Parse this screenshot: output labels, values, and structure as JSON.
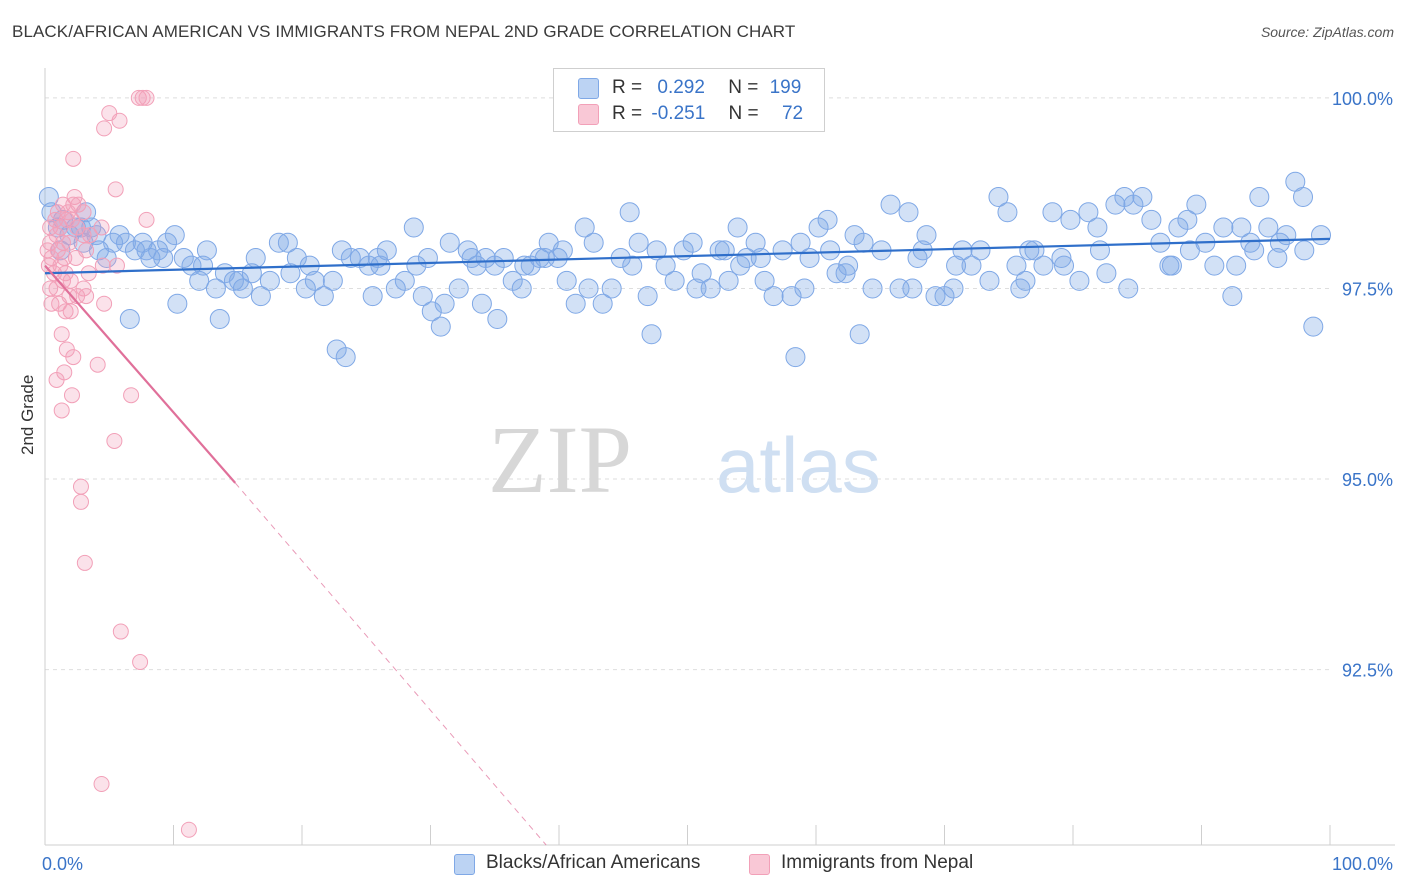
{
  "title": "BLACK/AFRICAN AMERICAN VS IMMIGRANTS FROM NEPAL 2ND GRADE CORRELATION CHART",
  "source": "Source: ZipAtlas.com",
  "watermark": {
    "zip": "ZIP",
    "atlas": "atlas"
  },
  "legend": {
    "rows": [
      {
        "r_label": "R =",
        "r_value": "0.292",
        "n_label": "N =",
        "n_value": "199",
        "color": "#7fa8e6"
      },
      {
        "r_label": "R =",
        "r_value": "-0.251",
        "n_label": "N =",
        "n_value": "72",
        "color": "#f2a0b8"
      }
    ]
  },
  "chart_data": {
    "type": "scatter",
    "title": "BLACK/AFRICAN AMERICAN VS IMMIGRANTS FROM NEPAL 2ND GRADE CORRELATION CHART",
    "xlabel": "",
    "ylabel": "2nd Grade",
    "xlim": [
      0,
      100
    ],
    "ylim": [
      90.2,
      100.3
    ],
    "x_tick_labels": [
      "0.0%",
      "100.0%"
    ],
    "y_ticks": [
      92.5,
      95.0,
      97.5,
      100.0
    ],
    "y_tick_labels": [
      "92.5%",
      "95.0%",
      "97.5%",
      "100.0%"
    ],
    "grid": true,
    "legend_position": "bottom",
    "series": [
      {
        "name": "Blacks/African Americans",
        "color": "#7fa8e6",
        "line_color": "#2f6fca",
        "r": 0.292,
        "n": 199,
        "trend": {
          "x": [
            0,
            100
          ],
          "y": [
            97.7,
            98.15
          ]
        },
        "points": [
          [
            0.3,
            98.7
          ],
          [
            0.5,
            98.5
          ],
          [
            1.0,
            98.3
          ],
          [
            1.4,
            98.4
          ],
          [
            1.9,
            98.2
          ],
          [
            2.4,
            98.3
          ],
          [
            3.0,
            98.1
          ],
          [
            3.6,
            98.3
          ],
          [
            4.2,
            98.0
          ],
          [
            4.8,
            97.9
          ],
          [
            5.3,
            98.1
          ],
          [
            5.8,
            98.2
          ],
          [
            6.3,
            98.1
          ],
          [
            7.0,
            98.0
          ],
          [
            7.6,
            98.1
          ],
          [
            8.2,
            97.9
          ],
          [
            8.8,
            98.0
          ],
          [
            9.5,
            98.1
          ],
          [
            10.1,
            98.2
          ],
          [
            10.8,
            97.9
          ],
          [
            11.4,
            97.8
          ],
          [
            12.0,
            97.6
          ],
          [
            12.6,
            98.0
          ],
          [
            13.3,
            97.5
          ],
          [
            14.0,
            97.7
          ],
          [
            14.7,
            97.6
          ],
          [
            15.4,
            97.5
          ],
          [
            16.1,
            97.7
          ],
          [
            16.8,
            97.4
          ],
          [
            17.5,
            97.6
          ],
          [
            18.2,
            98.1
          ],
          [
            18.9,
            98.1
          ],
          [
            19.6,
            97.9
          ],
          [
            20.3,
            97.5
          ],
          [
            21.0,
            97.6
          ],
          [
            21.7,
            97.4
          ],
          [
            22.4,
            97.6
          ],
          [
            23.1,
            98.0
          ],
          [
            23.8,
            97.9
          ],
          [
            24.5,
            97.9
          ],
          [
            25.2,
            97.8
          ],
          [
            25.9,
            97.9
          ],
          [
            26.6,
            98.0
          ],
          [
            27.3,
            97.5
          ],
          [
            28.0,
            97.6
          ],
          [
            28.7,
            98.3
          ],
          [
            29.4,
            97.4
          ],
          [
            30.1,
            97.2
          ],
          [
            30.8,
            97.0
          ],
          [
            31.5,
            98.1
          ],
          [
            32.2,
            97.5
          ],
          [
            32.9,
            98.0
          ],
          [
            33.6,
            97.8
          ],
          [
            34.3,
            97.9
          ],
          [
            35.0,
            97.8
          ],
          [
            35.7,
            97.9
          ],
          [
            36.4,
            97.6
          ],
          [
            37.1,
            97.5
          ],
          [
            37.8,
            97.8
          ],
          [
            38.5,
            97.9
          ],
          [
            39.2,
            98.1
          ],
          [
            39.9,
            97.9
          ],
          [
            40.6,
            97.6
          ],
          [
            41.3,
            97.3
          ],
          [
            42.0,
            98.3
          ],
          [
            42.7,
            98.1
          ],
          [
            43.4,
            97.3
          ],
          [
            44.1,
            97.5
          ],
          [
            44.8,
            97.9
          ],
          [
            45.5,
            98.5
          ],
          [
            46.2,
            98.1
          ],
          [
            46.9,
            97.4
          ],
          [
            47.6,
            98.0
          ],
          [
            48.3,
            97.8
          ],
          [
            49.0,
            97.6
          ],
          [
            49.7,
            98.0
          ],
          [
            50.4,
            98.1
          ],
          [
            51.1,
            97.7
          ],
          [
            51.8,
            97.5
          ],
          [
            52.5,
            98.0
          ],
          [
            53.2,
            97.6
          ],
          [
            53.9,
            98.3
          ],
          [
            54.6,
            97.9
          ],
          [
            55.3,
            98.1
          ],
          [
            56.0,
            97.6
          ],
          [
            56.7,
            97.4
          ],
          [
            57.4,
            98.0
          ],
          [
            58.1,
            97.4
          ],
          [
            58.8,
            98.1
          ],
          [
            59.5,
            97.9
          ],
          [
            60.2,
            98.3
          ],
          [
            60.9,
            98.4
          ],
          [
            61.6,
            97.7
          ],
          [
            62.3,
            97.7
          ],
          [
            63.0,
            98.2
          ],
          [
            63.7,
            98.1
          ],
          [
            64.4,
            97.5
          ],
          [
            65.1,
            98.0
          ],
          [
            65.8,
            98.6
          ],
          [
            66.5,
            97.5
          ],
          [
            67.2,
            98.5
          ],
          [
            67.9,
            97.9
          ],
          [
            68.6,
            98.2
          ],
          [
            69.3,
            97.4
          ],
          [
            70.0,
            97.4
          ],
          [
            70.7,
            97.5
          ],
          [
            71.4,
            98.0
          ],
          [
            72.1,
            97.8
          ],
          [
            72.8,
            98.0
          ],
          [
            73.5,
            97.6
          ],
          [
            74.2,
            98.7
          ],
          [
            74.9,
            98.5
          ],
          [
            75.6,
            97.8
          ],
          [
            76.3,
            97.6
          ],
          [
            77.0,
            98.0
          ],
          [
            77.7,
            97.8
          ],
          [
            78.4,
            98.5
          ],
          [
            79.1,
            97.9
          ],
          [
            79.8,
            98.4
          ],
          [
            80.5,
            97.6
          ],
          [
            81.2,
            98.5
          ],
          [
            81.9,
            98.3
          ],
          [
            82.6,
            97.7
          ],
          [
            83.3,
            98.6
          ],
          [
            84.0,
            98.7
          ],
          [
            84.7,
            98.6
          ],
          [
            85.4,
            98.7
          ],
          [
            86.1,
            98.4
          ],
          [
            86.8,
            98.1
          ],
          [
            87.5,
            97.8
          ],
          [
            88.2,
            98.3
          ],
          [
            88.9,
            98.4
          ],
          [
            89.6,
            98.6
          ],
          [
            90.3,
            98.1
          ],
          [
            91.0,
            97.8
          ],
          [
            91.7,
            98.3
          ],
          [
            92.4,
            97.4
          ],
          [
            93.1,
            98.3
          ],
          [
            93.8,
            98.1
          ],
          [
            94.5,
            98.7
          ],
          [
            95.2,
            98.3
          ],
          [
            95.9,
            97.9
          ],
          [
            96.6,
            98.2
          ],
          [
            97.3,
            98.9
          ],
          [
            98.0,
            98.0
          ],
          [
            98.7,
            97.0
          ],
          [
            99.3,
            98.2
          ],
          [
            1.2,
            98.0
          ],
          [
            2.8,
            98.3
          ],
          [
            6.6,
            97.1
          ],
          [
            10.3,
            97.3
          ],
          [
            13.6,
            97.1
          ],
          [
            22.7,
            96.7
          ],
          [
            23.4,
            96.6
          ],
          [
            31.1,
            97.3
          ],
          [
            35.2,
            97.1
          ],
          [
            47.2,
            96.9
          ],
          [
            58.4,
            96.6
          ],
          [
            63.4,
            96.9
          ],
          [
            9.2,
            97.9
          ],
          [
            16.4,
            97.9
          ],
          [
            25.5,
            97.4
          ],
          [
            34.0,
            97.3
          ],
          [
            42.3,
            97.5
          ],
          [
            50.7,
            97.5
          ],
          [
            59.1,
            97.5
          ],
          [
            67.5,
            97.5
          ],
          [
            75.9,
            97.5
          ],
          [
            84.3,
            97.5
          ],
          [
            92.7,
            97.8
          ],
          [
            4.0,
            98.2
          ],
          [
            12.3,
            97.8
          ],
          [
            20.6,
            97.8
          ],
          [
            28.9,
            97.8
          ],
          [
            37.3,
            97.8
          ],
          [
            45.7,
            97.8
          ],
          [
            54.1,
            97.8
          ],
          [
            62.5,
            97.8
          ],
          [
            70.9,
            97.8
          ],
          [
            79.3,
            97.8
          ],
          [
            87.7,
            97.8
          ],
          [
            96.1,
            98.1
          ],
          [
            7.9,
            98.0
          ],
          [
            15.1,
            97.6
          ],
          [
            26.1,
            97.8
          ],
          [
            33.2,
            97.9
          ],
          [
            40.3,
            98.0
          ],
          [
            52.9,
            98.0
          ],
          [
            61.1,
            98.0
          ],
          [
            68.3,
            98.0
          ],
          [
            76.6,
            98.0
          ],
          [
            82.1,
            98.0
          ],
          [
            89.1,
            98.0
          ],
          [
            94.1,
            98.0
          ],
          [
            97.9,
            98.7
          ],
          [
            3.2,
            98.5
          ],
          [
            19.1,
            97.7
          ],
          [
            29.8,
            97.9
          ],
          [
            38.9,
            97.9
          ],
          [
            55.7,
            97.9
          ]
        ]
      },
      {
        "name": "Immigrants from Nepal",
        "color": "#f2a0b8",
        "line_color": "#e0709a",
        "r": -0.251,
        "n": 72,
        "trend": {
          "x": [
            0,
            14.8
          ],
          "y": [
            97.8,
            94.95
          ]
        },
        "trend_extension": {
          "x": [
            14.8,
            39.0
          ],
          "y": [
            94.95,
            90.2
          ]
        },
        "points": [
          [
            7.3,
            100.0
          ],
          [
            7.6,
            100.0
          ],
          [
            7.9,
            100.0
          ],
          [
            5.0,
            99.8
          ],
          [
            5.8,
            99.7
          ],
          [
            4.6,
            99.6
          ],
          [
            2.2,
            99.2
          ],
          [
            5.5,
            98.8
          ],
          [
            2.3,
            98.7
          ],
          [
            7.9,
            98.4
          ],
          [
            1.0,
            98.5
          ],
          [
            1.4,
            98.6
          ],
          [
            1.8,
            98.5
          ],
          [
            2.2,
            98.6
          ],
          [
            2.6,
            98.6
          ],
          [
            3.0,
            98.5
          ],
          [
            0.4,
            98.3
          ],
          [
            0.8,
            98.4
          ],
          [
            1.2,
            98.3
          ],
          [
            1.7,
            98.4
          ],
          [
            2.1,
            98.4
          ],
          [
            2.5,
            98.3
          ],
          [
            3.0,
            98.2
          ],
          [
            0.4,
            98.1
          ],
          [
            0.9,
            98.2
          ],
          [
            1.4,
            98.1
          ],
          [
            1.9,
            98.1
          ],
          [
            3.5,
            98.2
          ],
          [
            4.4,
            98.3
          ],
          [
            0.2,
            98.0
          ],
          [
            0.5,
            97.9
          ],
          [
            1.0,
            98.0
          ],
          [
            1.5,
            97.9
          ],
          [
            2.4,
            97.9
          ],
          [
            3.2,
            98.0
          ],
          [
            0.3,
            97.8
          ],
          [
            0.7,
            97.7
          ],
          [
            1.2,
            97.8
          ],
          [
            1.6,
            97.7
          ],
          [
            2.0,
            97.6
          ],
          [
            3.4,
            97.7
          ],
          [
            4.5,
            97.8
          ],
          [
            5.6,
            97.8
          ],
          [
            0.4,
            97.5
          ],
          [
            0.9,
            97.5
          ],
          [
            1.4,
            97.6
          ],
          [
            1.9,
            97.4
          ],
          [
            2.5,
            97.4
          ],
          [
            3.0,
            97.5
          ],
          [
            0.5,
            97.3
          ],
          [
            1.1,
            97.3
          ],
          [
            1.6,
            97.2
          ],
          [
            2.0,
            97.2
          ],
          [
            3.2,
            97.4
          ],
          [
            4.6,
            97.3
          ],
          [
            1.3,
            96.9
          ],
          [
            1.7,
            96.7
          ],
          [
            2.2,
            96.6
          ],
          [
            4.1,
            96.5
          ],
          [
            1.5,
            96.4
          ],
          [
            0.9,
            96.3
          ],
          [
            2.1,
            96.1
          ],
          [
            6.7,
            96.1
          ],
          [
            1.3,
            95.9
          ],
          [
            5.4,
            95.5
          ],
          [
            2.8,
            94.9
          ],
          [
            2.8,
            94.7
          ],
          [
            3.1,
            93.9
          ],
          [
            5.9,
            93.0
          ],
          [
            7.4,
            92.6
          ],
          [
            4.4,
            91.0
          ],
          [
            11.2,
            90.4
          ]
        ]
      }
    ]
  }
}
